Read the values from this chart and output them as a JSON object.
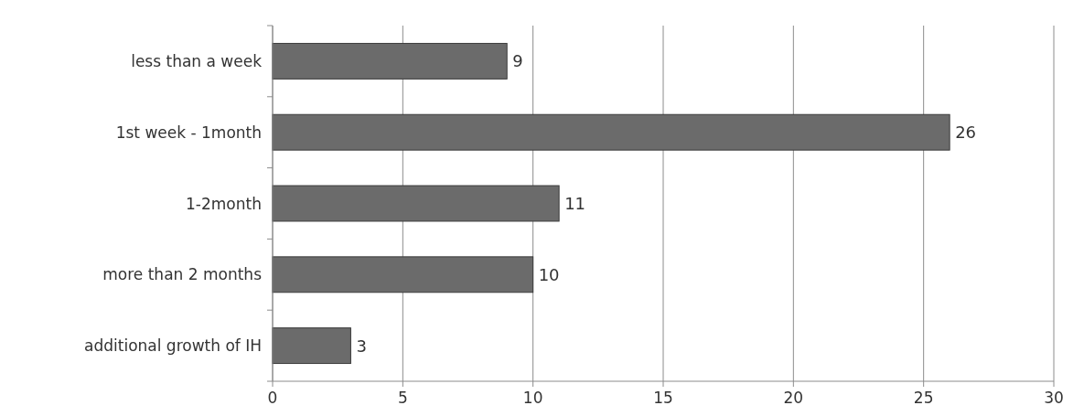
{
  "chart_data": {
    "type": "bar",
    "orientation": "horizontal",
    "categories": [
      "less than a week",
      "1st week - 1month",
      "1-2month",
      "more than 2 months",
      "additional growth of IH"
    ],
    "values": [
      9,
      26,
      11,
      10,
      3
    ],
    "color": "#6b6b6b",
    "xlim": [
      0,
      30
    ],
    "xticks": [
      0,
      5,
      10,
      15,
      20,
      25,
      30
    ],
    "grid": "x",
    "data_labels": true
  }
}
